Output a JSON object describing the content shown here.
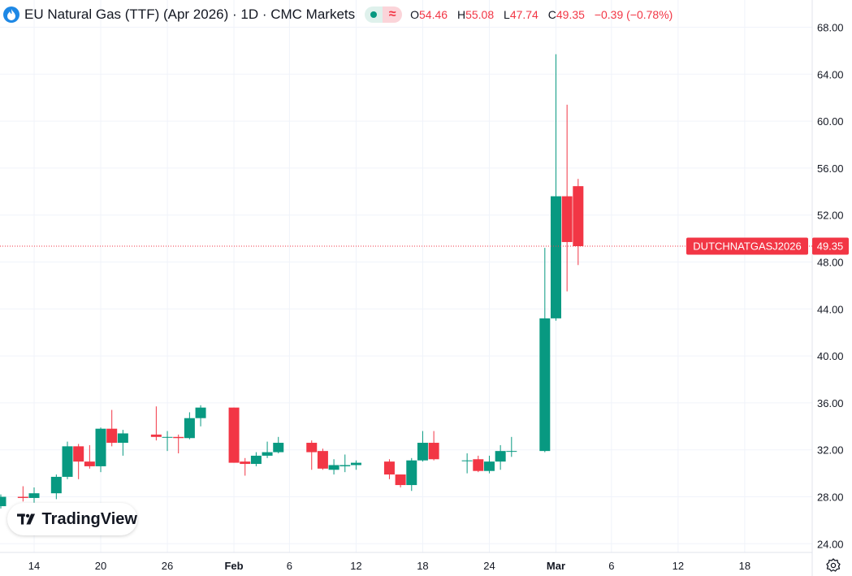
{
  "header": {
    "title": "EU Natural Gas (TTF) (Apr 2026) · 1D · CMC Markets",
    "ohlc": {
      "o_label": "O",
      "o_value": "54.46",
      "h_label": "H",
      "h_value": "55.08",
      "l_label": "L",
      "l_value": "47.74",
      "c_label": "C",
      "c_value": "49.35",
      "change": "−0.39 (−0.78%)"
    }
  },
  "price_tag": {
    "symbol": "DUTCHNATGASJ2026",
    "value": "49.35"
  },
  "branding": {
    "logo_text": "TradingView"
  },
  "colors": {
    "up": "#089981",
    "down": "#f23645",
    "grid": "#f0f3fa",
    "text": "#131722"
  },
  "chart_data": {
    "type": "candlestick",
    "ylim": [
      22.5,
      69.5
    ],
    "yticks": [
      "24.00",
      "28.00",
      "32.00",
      "36.00",
      "40.00",
      "44.00",
      "48.00",
      "52.00",
      "56.00",
      "60.00",
      "64.00",
      "68.00"
    ],
    "xticks": [
      {
        "label": "14",
        "bold": false,
        "day": 0
      },
      {
        "label": "20",
        "bold": false,
        "day": 6
      },
      {
        "label": "26",
        "bold": false,
        "day": 12
      },
      {
        "label": "Feb",
        "bold": true,
        "day": 18
      },
      {
        "label": "6",
        "bold": false,
        "day": 23
      },
      {
        "label": "12",
        "bold": false,
        "day": 29
      },
      {
        "label": "18",
        "bold": false,
        "day": 35
      },
      {
        "label": "24",
        "bold": false,
        "day": 41
      },
      {
        "label": "Mar",
        "bold": true,
        "day": 47
      },
      {
        "label": "6",
        "bold": false,
        "day": 52
      },
      {
        "label": "12",
        "bold": false,
        "day": 58
      },
      {
        "label": "18",
        "bold": false,
        "day": 64
      }
    ],
    "candles": [
      {
        "day": -3,
        "o": 27.2,
        "h": 28.2,
        "l": 27.0,
        "c": 28.0
      },
      {
        "day": -1,
        "o": 28.0,
        "h": 28.9,
        "l": 27.6,
        "c": 27.9
      },
      {
        "day": 0,
        "o": 27.9,
        "h": 28.8,
        "l": 27.5,
        "c": 28.3
      },
      {
        "day": 2,
        "o": 28.3,
        "h": 29.9,
        "l": 27.8,
        "c": 29.7
      },
      {
        "day": 3,
        "o": 29.7,
        "h": 32.7,
        "l": 29.5,
        "c": 32.3
      },
      {
        "day": 4,
        "o": 32.3,
        "h": 32.5,
        "l": 29.5,
        "c": 31.0
      },
      {
        "day": 5,
        "o": 31.0,
        "h": 32.4,
        "l": 30.4,
        "c": 30.6
      },
      {
        "day": 6,
        "o": 30.6,
        "h": 33.9,
        "l": 30.1,
        "c": 33.8
      },
      {
        "day": 7,
        "o": 33.8,
        "h": 35.4,
        "l": 32.3,
        "c": 32.6
      },
      {
        "day": 8,
        "o": 32.6,
        "h": 33.7,
        "l": 31.5,
        "c": 33.4
      },
      {
        "day": 11,
        "o": 33.3,
        "h": 35.7,
        "l": 32.8,
        "c": 33.1
      },
      {
        "day": 12,
        "o": 33.1,
        "h": 33.6,
        "l": 31.9,
        "c": 33.1
      },
      {
        "day": 13,
        "o": 33.1,
        "h": 33.3,
        "l": 31.7,
        "c": 33.0
      },
      {
        "day": 14,
        "o": 33.0,
        "h": 35.2,
        "l": 32.9,
        "c": 34.7
      },
      {
        "day": 15,
        "o": 34.7,
        "h": 35.8,
        "l": 34.0,
        "c": 35.6
      },
      {
        "day": 18,
        "o": 35.6,
        "h": 35.6,
        "l": 30.9,
        "c": 30.9
      },
      {
        "day": 19,
        "o": 31.0,
        "h": 31.3,
        "l": 29.8,
        "c": 30.8
      },
      {
        "day": 20,
        "o": 30.8,
        "h": 31.8,
        "l": 30.6,
        "c": 31.5
      },
      {
        "day": 21,
        "o": 31.5,
        "h": 32.7,
        "l": 31.3,
        "c": 31.8
      },
      {
        "day": 22,
        "o": 31.8,
        "h": 33.1,
        "l": 31.7,
        "c": 32.6
      },
      {
        "day": 25,
        "o": 32.6,
        "h": 32.8,
        "l": 30.3,
        "c": 31.8
      },
      {
        "day": 26,
        "o": 31.9,
        "h": 32.1,
        "l": 30.3,
        "c": 30.4
      },
      {
        "day": 27,
        "o": 30.3,
        "h": 31.2,
        "l": 29.9,
        "c": 30.7
      },
      {
        "day": 28,
        "o": 30.6,
        "h": 31.6,
        "l": 30.1,
        "c": 30.7
      },
      {
        "day": 29,
        "o": 30.7,
        "h": 31.1,
        "l": 30.3,
        "c": 30.9
      },
      {
        "day": 32,
        "o": 31.0,
        "h": 31.2,
        "l": 29.5,
        "c": 29.9
      },
      {
        "day": 33,
        "o": 29.9,
        "h": 29.9,
        "l": 28.8,
        "c": 29.0
      },
      {
        "day": 34,
        "o": 29.0,
        "h": 31.3,
        "l": 28.5,
        "c": 31.1
      },
      {
        "day": 35,
        "o": 31.1,
        "h": 33.6,
        "l": 31.0,
        "c": 32.6
      },
      {
        "day": 36,
        "o": 32.6,
        "h": 33.6,
        "l": 31.1,
        "c": 31.2
      },
      {
        "day": 39,
        "o": 31.1,
        "h": 31.7,
        "l": 30.0,
        "c": 31.1
      },
      {
        "day": 40,
        "o": 31.2,
        "h": 31.5,
        "l": 30.1,
        "c": 30.2
      },
      {
        "day": 41,
        "o": 30.2,
        "h": 31.5,
        "l": 30.0,
        "c": 31.0
      },
      {
        "day": 42,
        "o": 31.0,
        "h": 32.4,
        "l": 30.3,
        "c": 31.9
      },
      {
        "day": 43,
        "o": 31.9,
        "h": 33.1,
        "l": 31.4,
        "c": 31.9
      },
      {
        "day": 46,
        "o": 31.9,
        "h": 49.2,
        "l": 31.8,
        "c": 43.2
      },
      {
        "day": 47,
        "o": 43.2,
        "h": 65.7,
        "l": 43.0,
        "c": 53.6
      },
      {
        "day": 48,
        "o": 53.6,
        "h": 61.4,
        "l": 45.5,
        "c": 49.7
      },
      {
        "day": 49,
        "o": 54.46,
        "h": 55.08,
        "l": 47.74,
        "c": 49.35
      }
    ]
  }
}
